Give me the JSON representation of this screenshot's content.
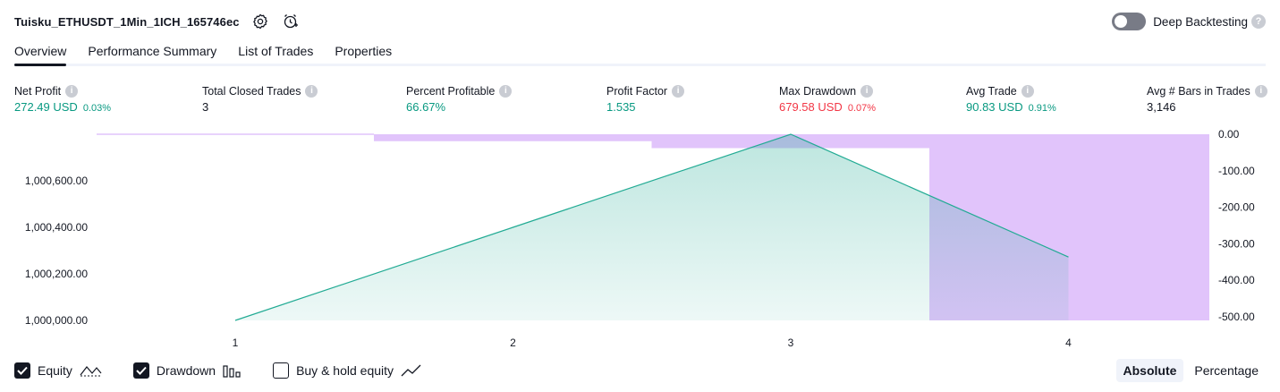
{
  "header": {
    "title": "Tuisku_ETHUSDT_1Min_1ICH_165746ec",
    "deep_backtesting_label": "Deep Backtesting",
    "deep_backtesting_enabled": false,
    "help_mark": "?"
  },
  "tabs": [
    {
      "label": "Overview",
      "active": true
    },
    {
      "label": "Performance Summary",
      "active": false
    },
    {
      "label": "List of Trades",
      "active": false
    },
    {
      "label": "Properties",
      "active": false
    }
  ],
  "stats": [
    {
      "label": "Net Profit",
      "value": "272.49 USD",
      "sub": "0.03%",
      "color": "#089981"
    },
    {
      "label": "Total Closed Trades",
      "value": "3",
      "sub": "",
      "color": "#131722"
    },
    {
      "label": "Percent Profitable",
      "value": "66.67%",
      "sub": "",
      "color": "#089981"
    },
    {
      "label": "Profit Factor",
      "value": "1.535",
      "sub": "",
      "color": "#089981"
    },
    {
      "label": "Max Drawdown",
      "value": "679.58 USD",
      "sub": "0.07%",
      "color": "#f23645"
    },
    {
      "label": "Avg Trade",
      "value": "90.83 USD",
      "sub": "0.91%",
      "color": "#089981"
    },
    {
      "label": "Avg # Bars in Trades",
      "value": "3,146",
      "sub": "",
      "color": "#131722"
    }
  ],
  "info_mark": "i",
  "chart_data": {
    "type": "line",
    "x": [
      1,
      2,
      3,
      4
    ],
    "x_ticks": [
      "1",
      "2",
      "3",
      "4"
    ],
    "left_axis": {
      "ticks": [
        "1,000,000.00",
        "1,000,200.00",
        "1,000,400.00",
        "1,000,600.00"
      ],
      "range": [
        1000000,
        1000800
      ]
    },
    "right_axis": {
      "ticks": [
        "0.00",
        "-100.00",
        "-200.00",
        "-300.00",
        "-400.00",
        "-500.00"
      ],
      "range": [
        -510,
        0
      ]
    },
    "series": [
      {
        "name": "Equity",
        "values": [
          1000000,
          1000400,
          1000800,
          1000272.49
        ],
        "color": "#22ab94",
        "plot": "area"
      },
      {
        "name": "Drawdown",
        "values": [
          -1,
          -19,
          -38,
          -510
        ],
        "color": "#e1c4fb",
        "plot": "bar"
      }
    ],
    "grid": false
  },
  "legend": [
    {
      "label": "Equity",
      "checked": true,
      "icon": "equity-line-icon"
    },
    {
      "label": "Drawdown",
      "checked": true,
      "icon": "drawdown-bars-icon"
    },
    {
      "label": "Buy & hold equity",
      "checked": false,
      "icon": "buy-hold-line-icon"
    }
  ],
  "modes": [
    {
      "label": "Absolute",
      "active": true
    },
    {
      "label": "Percentage",
      "active": false
    }
  ]
}
